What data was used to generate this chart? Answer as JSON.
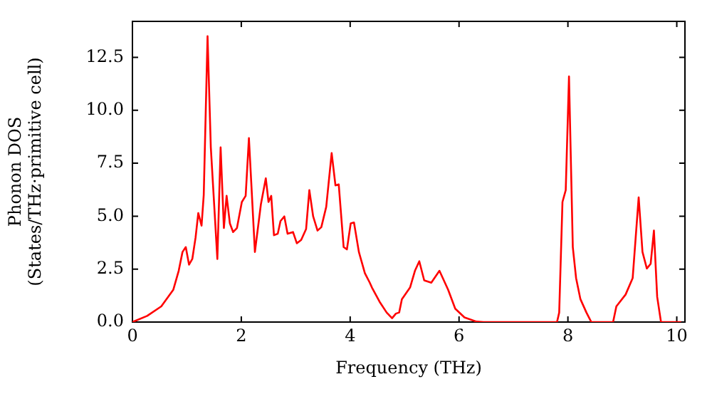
{
  "chart_data": {
    "type": "line",
    "xlabel": "Frequency (THz)",
    "ylabel": "Phonon DOS\n(States/THz·primitive cell)",
    "x": [
      0,
      0.27,
      0.53,
      0.75,
      0.85,
      0.92,
      0.98,
      1.04,
      1.1,
      1.16,
      1.21,
      1.27,
      1.31,
      1.38,
      1.44,
      1.56,
      1.62,
      1.68,
      1.73,
      1.79,
      1.85,
      1.92,
      2.01,
      2.08,
      2.14,
      2.25,
      2.36,
      2.45,
      2.5,
      2.55,
      2.6,
      2.67,
      2.72,
      2.79,
      2.85,
      2.95,
      3.02,
      3.1,
      3.19,
      3.25,
      3.32,
      3.4,
      3.47,
      3.56,
      3.66,
      3.73,
      3.79,
      3.88,
      3.94,
      4.01,
      4.07,
      4.16,
      4.27,
      4.36,
      4.4,
      4.54,
      4.67,
      4.77,
      4.84,
      4.9,
      4.95,
      5.1,
      5.19,
      5.27,
      5.36,
      5.49,
      5.64,
      5.8,
      5.93,
      6.1,
      6.32,
      6.45,
      7.8,
      7.84,
      7.9,
      7.96,
      8.02,
      8.09,
      8.15,
      8.23,
      8.34,
      8.43,
      8.83,
      8.89,
      9.06,
      9.19,
      9.3,
      9.37,
      9.45,
      9.52,
      9.58,
      9.64,
      9.71,
      10.08
    ],
    "series": [
      {
        "color": "#ff0000",
        "values": [
          0,
          0.29,
          0.74,
          1.52,
          2.42,
          3.31,
          3.54,
          2.71,
          2.98,
          3.99,
          5.15,
          4.55,
          6.0,
          13.5,
          8.25,
          2.98,
          8.25,
          4.44,
          5.96,
          4.66,
          4.25,
          4.44,
          5.67,
          5.96,
          8.69,
          3.31,
          5.56,
          6.79,
          5.67,
          5.96,
          4.1,
          4.17,
          4.77,
          4.99,
          4.17,
          4.25,
          3.72,
          3.88,
          4.39,
          6.23,
          4.99,
          4.32,
          4.48,
          5.44,
          7.98,
          6.45,
          6.5,
          3.54,
          3.43,
          4.66,
          4.7,
          3.31,
          2.31,
          1.86,
          1.63,
          0.96,
          0.45,
          0.18,
          0.4,
          0.45,
          1.08,
          1.63,
          2.42,
          2.87,
          1.97,
          1.86,
          2.42,
          1.52,
          0.63,
          0.22,
          0.02,
          0,
          0,
          0.45,
          5.67,
          6.23,
          11.6,
          3.54,
          2.08,
          1.08,
          0.45,
          0,
          0,
          0.74,
          1.3,
          2.08,
          5.89,
          3.31,
          2.53,
          2.75,
          4.32,
          1.19,
          0,
          0
        ]
      }
    ],
    "xlim": [
      0,
      10.15
    ],
    "ylim": [
      0,
      14.2
    ],
    "xticks": [
      0,
      2,
      4,
      6,
      8,
      10
    ],
    "yticks": [
      {
        "value": 0,
        "label": "0.0"
      },
      {
        "value": 2.5,
        "label": "2.5"
      },
      {
        "value": 5,
        "label": "5.0"
      },
      {
        "value": 7.5,
        "label": "7.5"
      },
      {
        "value": 10,
        "label": "10.0"
      },
      {
        "value": 12.5,
        "label": "12.5"
      }
    ],
    "grid": false,
    "legend": false,
    "marker": "none",
    "line_style": "solid"
  }
}
